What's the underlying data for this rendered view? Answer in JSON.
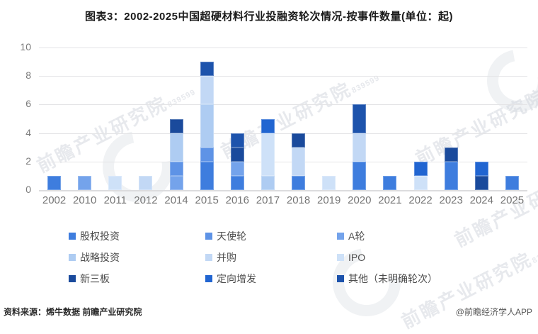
{
  "title": "图表3：2002-2025中国超硬材料行业投融资轮次情况-按事件数量(单位：起)",
  "watermark": {
    "text": "前瞻产业研究院",
    "sub": "839599"
  },
  "footer": {
    "source": "资料来源：烯牛数据 前瞻产业研究院",
    "credit": "@前瞻经济学人APP"
  },
  "palette": {
    "equity": "#3E7DDE",
    "angel": "#5E93E6",
    "seriesA": "#74A3EB",
    "strategic": "#AECCF2",
    "ma": "#C2D8F5",
    "ipo": "#CEE1F8",
    "neeq": "#1A4A9C",
    "placement": "#2165D1",
    "other": "#1D53AC"
  },
  "legend": {
    "items": [
      {
        "label": "股权投资",
        "color_key": "equity"
      },
      {
        "label": "天使轮",
        "color_key": "angel"
      },
      {
        "label": "A轮",
        "color_key": "seriesA"
      },
      {
        "label": "战略投资",
        "color_key": "strategic"
      },
      {
        "label": "并购",
        "color_key": "ma"
      },
      {
        "label": "IPO",
        "color_key": "ipo"
      },
      {
        "label": "新三板",
        "color_key": "neeq"
      },
      {
        "label": "定向增发",
        "color_key": "placement"
      },
      {
        "label": "其他（未明确轮次）",
        "color_key": "other"
      }
    ]
  },
  "chart_data": {
    "type": "bar",
    "stacked": true,
    "title": "图表3：2002-2025中国超硬材料行业投融资轮次情况-按事件数量(单位：起)",
    "unit": "起",
    "xlabel": "",
    "ylabel": "",
    "ylim": [
      0,
      10
    ],
    "yticks": [
      0,
      2,
      4,
      6,
      8,
      10
    ],
    "grid": true,
    "legend_position": "bottom",
    "categories": [
      "2002",
      "2010",
      "2011",
      "2012",
      "2014",
      "2015",
      "2016",
      "2017",
      "2018",
      "2019",
      "2020",
      "2021",
      "2022",
      "2023",
      "2024",
      "2025"
    ],
    "series": [
      {
        "name": "股权投资",
        "color_key": "equity",
        "values": [
          1,
          0,
          0,
          0,
          0,
          2,
          1,
          0,
          1,
          0,
          2,
          1,
          0,
          2,
          0,
          1
        ]
      },
      {
        "name": "A轮",
        "color_key": "seriesA",
        "values": [
          0,
          1,
          0,
          0,
          1,
          0,
          1,
          0,
          0,
          0,
          0,
          0,
          0,
          0,
          0,
          0
        ]
      },
      {
        "name": "天使轮",
        "color_key": "angel",
        "values": [
          0,
          0,
          0,
          0,
          1,
          1,
          0,
          0,
          0,
          0,
          0,
          0,
          0,
          0,
          0,
          0
        ]
      },
      {
        "name": "战略投资",
        "color_key": "strategic",
        "values": [
          0,
          0,
          0,
          0,
          2,
          3,
          0,
          1,
          0,
          0,
          0,
          0,
          0,
          0,
          0,
          0
        ]
      },
      {
        "name": "并购",
        "color_key": "ma",
        "values": [
          0,
          0,
          0,
          1,
          0,
          2,
          0,
          0,
          2,
          0,
          2,
          0,
          0,
          0,
          0,
          0
        ]
      },
      {
        "name": "IPO",
        "color_key": "ipo",
        "values": [
          0,
          0,
          1,
          0,
          0,
          0,
          0,
          3,
          0,
          1,
          0,
          0,
          1,
          0,
          0,
          0
        ]
      },
      {
        "name": "新三板",
        "color_key": "neeq",
        "values": [
          0,
          0,
          0,
          0,
          1,
          0,
          1,
          0,
          1,
          0,
          0,
          0,
          0,
          1,
          1,
          0
        ]
      },
      {
        "name": "其他（未明确轮次）",
        "color_key": "other",
        "values": [
          0,
          0,
          0,
          0,
          0,
          1,
          1,
          0,
          0,
          0,
          2,
          0,
          0,
          0,
          0,
          0
        ]
      },
      {
        "name": "定向增发",
        "color_key": "placement",
        "values": [
          0,
          0,
          0,
          0,
          0,
          0,
          0,
          1,
          0,
          0,
          0,
          0,
          1,
          0,
          1,
          0
        ]
      }
    ],
    "totals": [
      1,
      1,
      1,
      1,
      5,
      9,
      4,
      5,
      4,
      1,
      6,
      1,
      2,
      3,
      2,
      1
    ]
  }
}
